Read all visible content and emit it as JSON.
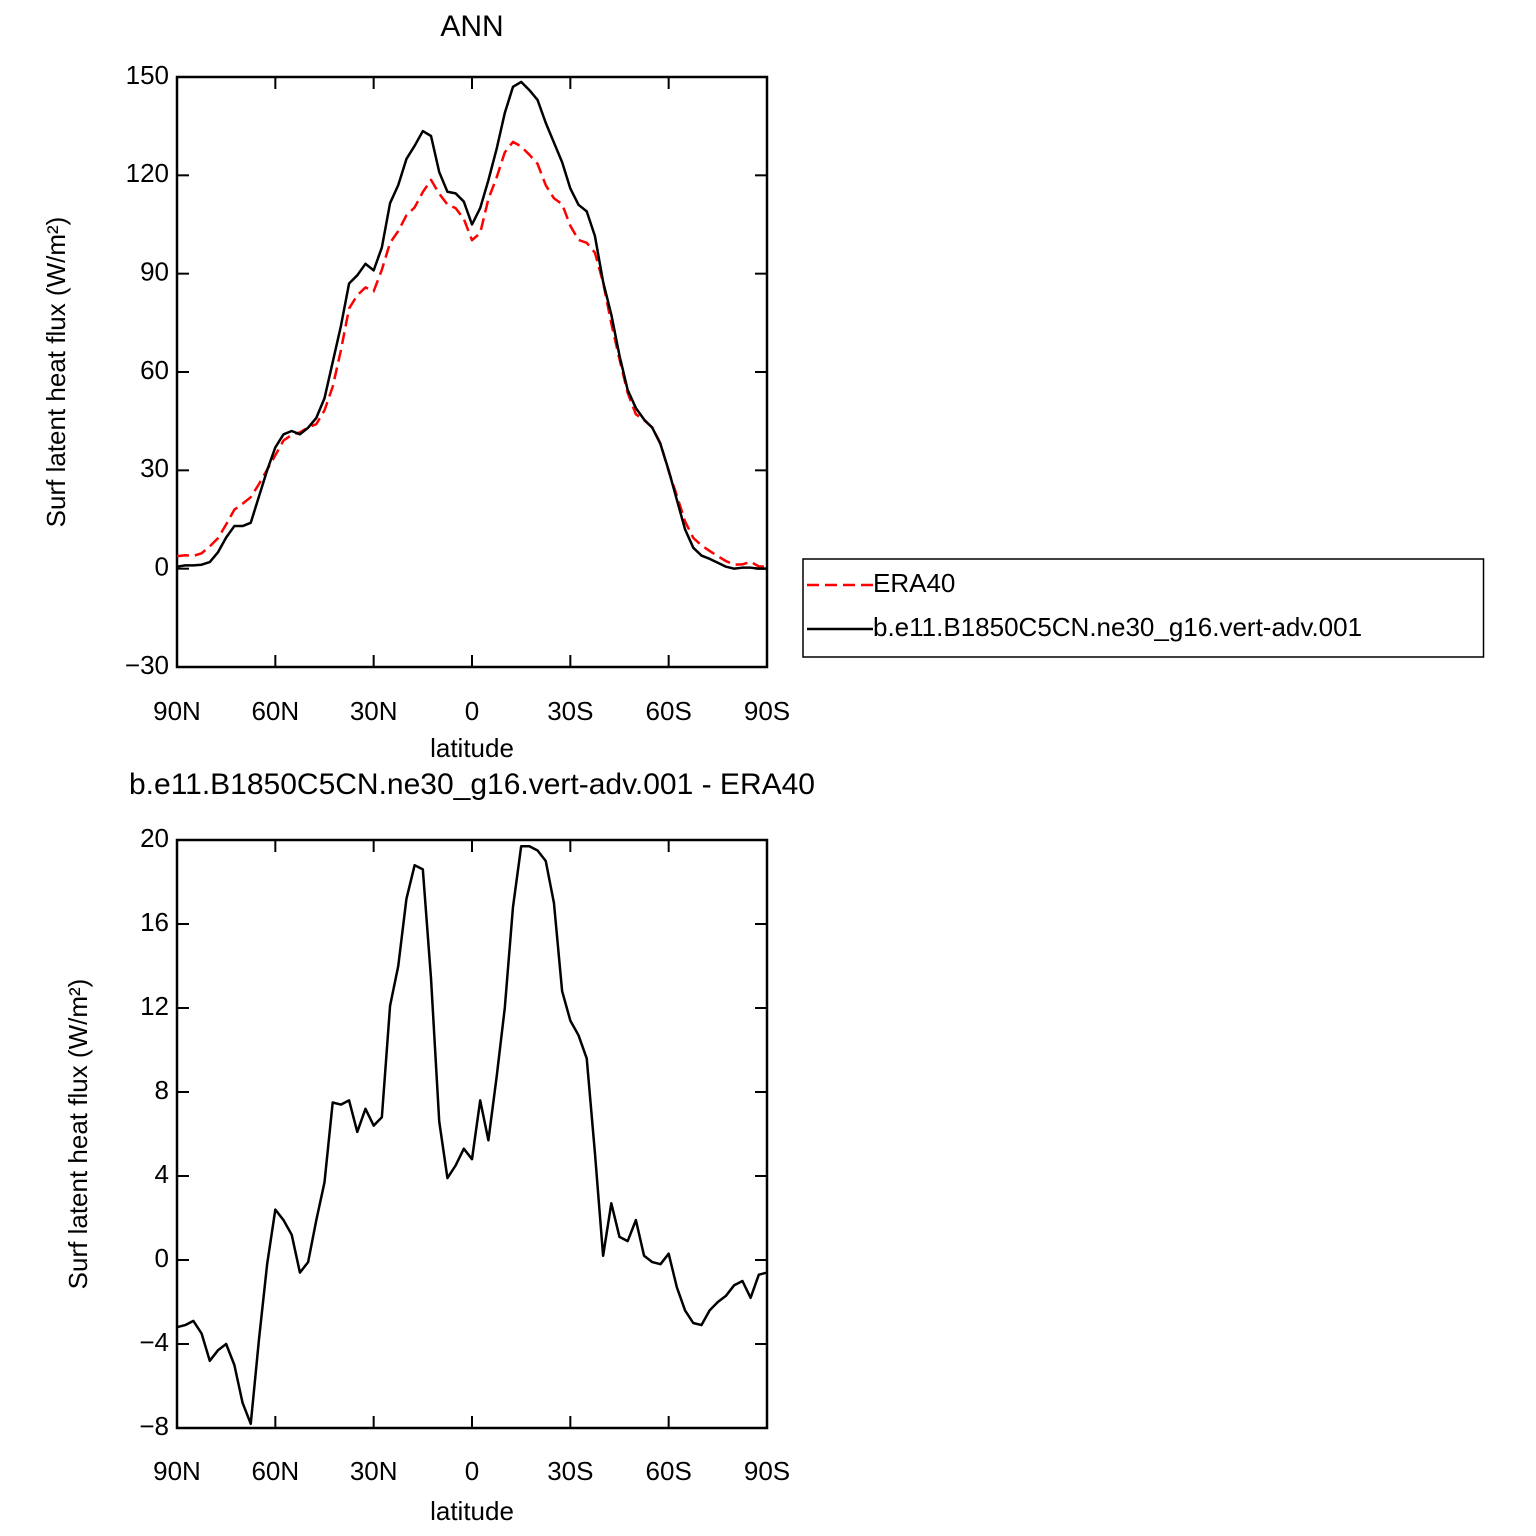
{
  "chart_data": [
    {
      "type": "line",
      "title": "ANN",
      "x_label": "latitude",
      "y_label": "Surf latent heat flux (W/m²)",
      "x": [
        90,
        87.5,
        85,
        82.5,
        80,
        77.5,
        75,
        72.5,
        70,
        67.5,
        65,
        62.5,
        60,
        57.5,
        55,
        52.5,
        50,
        47.5,
        45,
        42.5,
        40,
        37.5,
        35,
        32.5,
        30,
        27.5,
        25,
        22.5,
        20,
        17.5,
        15,
        12.5,
        10,
        7.5,
        5,
        2.5,
        0,
        -2.5,
        -5,
        -7.5,
        -10,
        -12.5,
        -15,
        -17.5,
        -20,
        -22.5,
        -25,
        -27.5,
        -30,
        -32.5,
        -35,
        -37.5,
        -40,
        -42.5,
        -45,
        -47.5,
        -50,
        -52.5,
        -55,
        -57.5,
        -60,
        -62.5,
        -65,
        -67.5,
        -70,
        -72.5,
        -75,
        -77.5,
        -80,
        -82.5,
        -85,
        -87.5,
        -90
      ],
      "xlim": [
        90,
        -90
      ],
      "xticks": [
        {
          "value": 90,
          "label": "90N"
        },
        {
          "value": 60,
          "label": "60N"
        },
        {
          "value": 30,
          "label": "30N"
        },
        0,
        {
          "value": -30,
          "label": "30S"
        },
        {
          "value": -60,
          "label": "60S"
        },
        {
          "value": -90,
          "label": "90S"
        }
      ],
      "ylim": [
        -30,
        150
      ],
      "yticks": [
        {
          "value": -30,
          "label": "−30"
        },
        0,
        30,
        60,
        90,
        120,
        150
      ],
      "legend": "right",
      "series": [
        {
          "name": "ERA40",
          "color": "#ff0000",
          "dashed": true,
          "values": [
            3.8,
            4.1,
            3.9,
            4.7,
            6.8,
            9.3,
            13.5,
            18,
            19.8,
            21.8,
            25.8,
            30.2,
            34.6,
            39.1,
            40.8,
            41.6,
            43.1,
            44.1,
            48.3,
            55.5,
            66.6,
            79.4,
            83.4,
            85.8,
            84.6,
            91.2,
            99.4,
            103,
            107.8,
            110.2,
            114.9,
            118.6,
            114.4,
            111.1,
            110,
            106.7,
            100.2,
            102.4,
            112.8,
            119.3,
            127,
            130.2,
            128.8,
            126.3,
            123.5,
            117,
            113,
            111.2,
            104.6,
            100.3,
            99.4,
            96.4,
            87.3,
            74.8,
            63.9,
            53.6,
            47.1,
            45.3,
            43.1,
            38.2,
            29.7,
            22.3,
            14.4,
            9.4,
            7.1,
            5.4,
            3.8,
            2.3,
            1.2,
            1.3,
            2.1,
            0.7,
            0.6
          ]
        },
        {
          "name": "b.e11.B1850C5CN.ne30_g16.vert-adv.001",
          "color": "#000000",
          "dashed": false,
          "values": [
            0.6,
            1,
            1,
            1.2,
            2,
            5,
            9.5,
            13,
            13,
            14,
            22,
            30,
            37,
            41,
            42,
            41,
            43,
            46,
            52,
            63,
            74,
            87,
            89.5,
            93,
            91,
            98,
            111.5,
            117,
            125,
            129,
            133.5,
            132,
            121,
            115,
            114.5,
            112,
            105,
            110,
            118.5,
            128,
            139,
            147,
            148.5,
            146,
            143,
            136,
            130,
            124,
            116,
            111,
            109,
            101.5,
            87.5,
            77.5,
            65,
            54.5,
            49,
            45.5,
            43,
            38,
            30,
            21,
            12,
            6.4,
            4,
            3,
            1.8,
            0.6,
            0,
            0.3,
            0.3,
            0,
            0
          ]
        }
      ]
    },
    {
      "type": "line",
      "title": "b.e11.B1850C5CN.ne30_g16.vert-adv.001 - ERA40",
      "x_label": "latitude",
      "y_label": "Surf latent heat flux (W/m²)",
      "x": [
        90,
        87.5,
        85,
        82.5,
        80,
        77.5,
        75,
        72.5,
        70,
        67.5,
        65,
        62.5,
        60,
        57.5,
        55,
        52.5,
        50,
        47.5,
        45,
        42.5,
        40,
        37.5,
        35,
        32.5,
        30,
        27.5,
        25,
        22.5,
        20,
        17.5,
        15,
        12.5,
        10,
        7.5,
        5,
        2.5,
        0,
        -2.5,
        -5,
        -7.5,
        -10,
        -12.5,
        -15,
        -17.5,
        -20,
        -22.5,
        -25,
        -27.5,
        -30,
        -32.5,
        -35,
        -37.5,
        -40,
        -42.5,
        -45,
        -47.5,
        -50,
        -52.5,
        -55,
        -57.5,
        -60,
        -62.5,
        -65,
        -67.5,
        -70,
        -72.5,
        -75,
        -77.5,
        -80,
        -82.5,
        -85,
        -87.5,
        -90
      ],
      "xlim": [
        90,
        -90
      ],
      "xticks": [
        {
          "value": 90,
          "label": "90N"
        },
        {
          "value": 60,
          "label": "60N"
        },
        {
          "value": 30,
          "label": "30N"
        },
        0,
        {
          "value": -30,
          "label": "30S"
        },
        {
          "value": -60,
          "label": "60S"
        },
        {
          "value": -90,
          "label": "90S"
        }
      ],
      "ylim": [
        -8,
        20
      ],
      "yticks": [
        {
          "value": -8,
          "label": "−8"
        },
        {
          "value": -4,
          "label": "−4"
        },
        0,
        4,
        8,
        12,
        16,
        20
      ],
      "color": "#000000",
      "values": [
        -3.2,
        -3.1,
        -2.9,
        -3.5,
        -4.8,
        -4.3,
        -4,
        -5,
        -6.8,
        -7.8,
        -3.8,
        -0.2,
        2.4,
        1.9,
        1.2,
        -0.6,
        -0.1,
        1.9,
        3.7,
        7.5,
        7.4,
        7.6,
        6.1,
        7.2,
        6.4,
        6.8,
        12.1,
        14,
        17.2,
        18.8,
        18.6,
        13.4,
        6.6,
        3.9,
        4.5,
        5.3,
        4.8,
        7.6,
        5.7,
        8.7,
        12,
        16.8,
        19.7,
        19.7,
        19.5,
        19,
        17,
        12.8,
        11.4,
        10.7,
        9.6,
        5.1,
        0.2,
        2.7,
        1.1,
        0.9,
        1.9,
        0.2,
        -0.1,
        -0.2,
        0.3,
        -1.3,
        -2.4,
        -3,
        -3.1,
        -2.4,
        -2,
        -1.7,
        -1.2,
        -1,
        -1.8,
        -0.7,
        -0.6
      ]
    }
  ]
}
